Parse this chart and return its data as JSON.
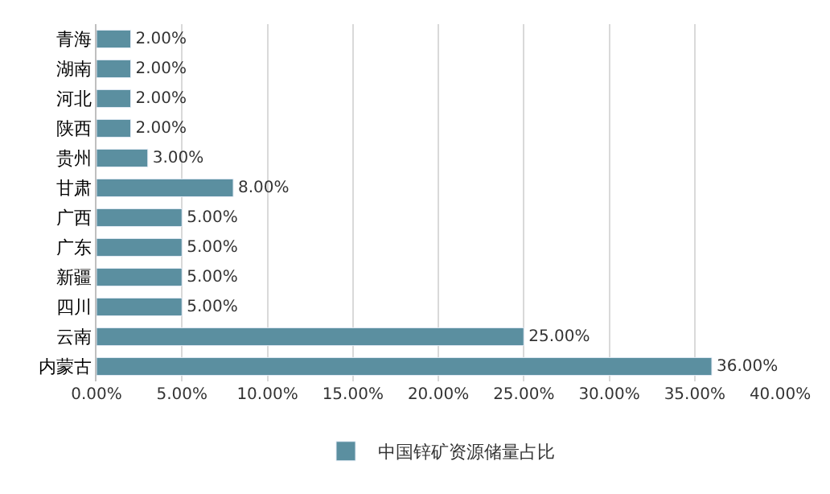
{
  "chart_data": {
    "type": "bar",
    "orientation": "horizontal",
    "categories": [
      "青海",
      "湖南",
      "河北",
      "陕西",
      "贵州",
      "甘肃",
      "广西",
      "广东",
      "新疆",
      "四川",
      "云南",
      "内蒙古"
    ],
    "series": [
      {
        "name": "中国锌矿资源储量占比",
        "color": "#5b8fa0",
        "values": [
          2,
          2,
          2,
          2,
          3,
          8,
          5,
          5,
          5,
          5,
          25,
          36
        ],
        "value_labels": [
          "2.00%",
          "2.00%",
          "2.00%",
          "2.00%",
          "3.00%",
          "8.00%",
          "5.00%",
          "5.00%",
          "5.00%",
          "5.00%",
          "25.00%",
          "36.00%"
        ]
      }
    ],
    "xlim": [
      0,
      40
    ],
    "xticks": [
      {
        "value": 0,
        "label": "0.00%"
      },
      {
        "value": 5,
        "label": "5.00%"
      },
      {
        "value": 10,
        "label": "10.00%"
      },
      {
        "value": 15,
        "label": "15.00%"
      },
      {
        "value": 20,
        "label": "20.00%"
      },
      {
        "value": 25,
        "label": "25.00%"
      },
      {
        "value": 30,
        "label": "30.00%"
      },
      {
        "value": 35,
        "label": "35.00%"
      },
      {
        "value": 40,
        "label": "40.00%"
      }
    ],
    "grid": "x",
    "legend": "bottom"
  }
}
